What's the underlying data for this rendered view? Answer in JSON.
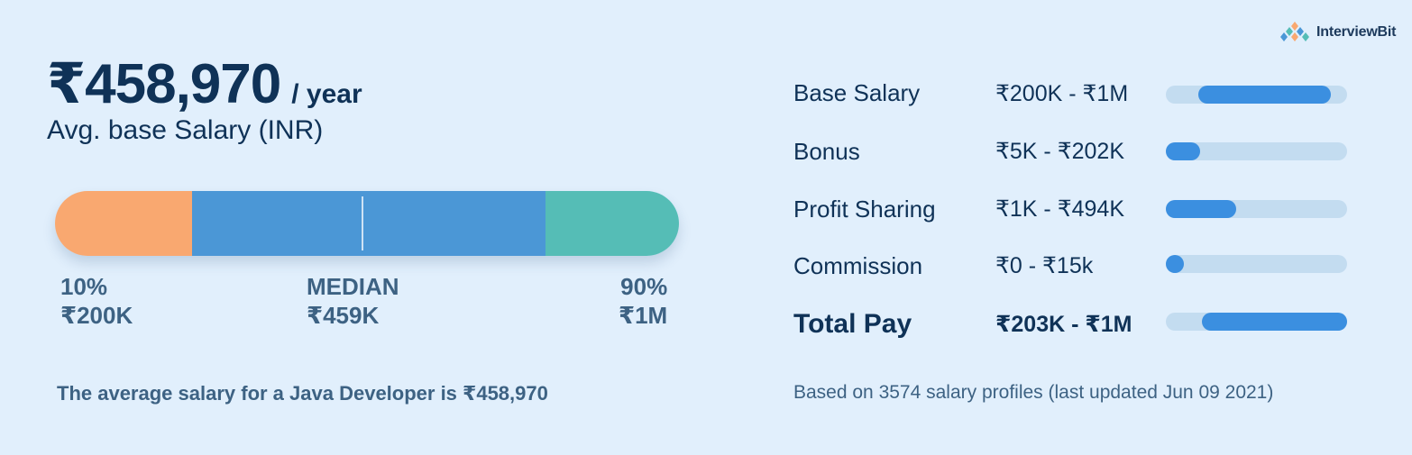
{
  "brand": {
    "name": "InterviewBit",
    "logo_icon": "interviewbit-logo-icon",
    "accent": "#3b8fe0"
  },
  "headline": {
    "amount": "₹458,970",
    "per": "/ year",
    "subtitle": "Avg. base Salary (INR)"
  },
  "range": {
    "low": {
      "pct_label": "10%",
      "value_label": "₹200K",
      "value_k": 200
    },
    "median": {
      "pct_label": "MEDIAN",
      "value_label": "₹459K",
      "value_k": 459
    },
    "high": {
      "pct_label": "90%",
      "value_label": "₹1M",
      "value_k": 1000
    },
    "colors": {
      "low": "#f9a870",
      "mid": "#4b97d6",
      "high": "#55bdb6"
    }
  },
  "chart_data": {
    "type": "bar",
    "categories": [
      "Base Salary",
      "Bonus",
      "Profit Sharing",
      "Commission",
      "Total Pay"
    ],
    "range_labels": [
      "₹200K - ₹1M",
      "₹5K - ₹202K",
      "₹1K - ₹494K",
      "₹0 - ₹15k",
      "₹203K - ₹1M"
    ],
    "fill_start": [
      0.18,
      0.0,
      0.0,
      0.0,
      0.2
    ],
    "fill_end": [
      0.91,
      0.19,
      0.39,
      0.09,
      1.0
    ],
    "highlight": "Total Pay"
  },
  "footer": {
    "left": "The average salary for a Java Developer is ₹458,970",
    "right": "Based on 3574 salary profiles (last updated Jun 09 2021)"
  }
}
